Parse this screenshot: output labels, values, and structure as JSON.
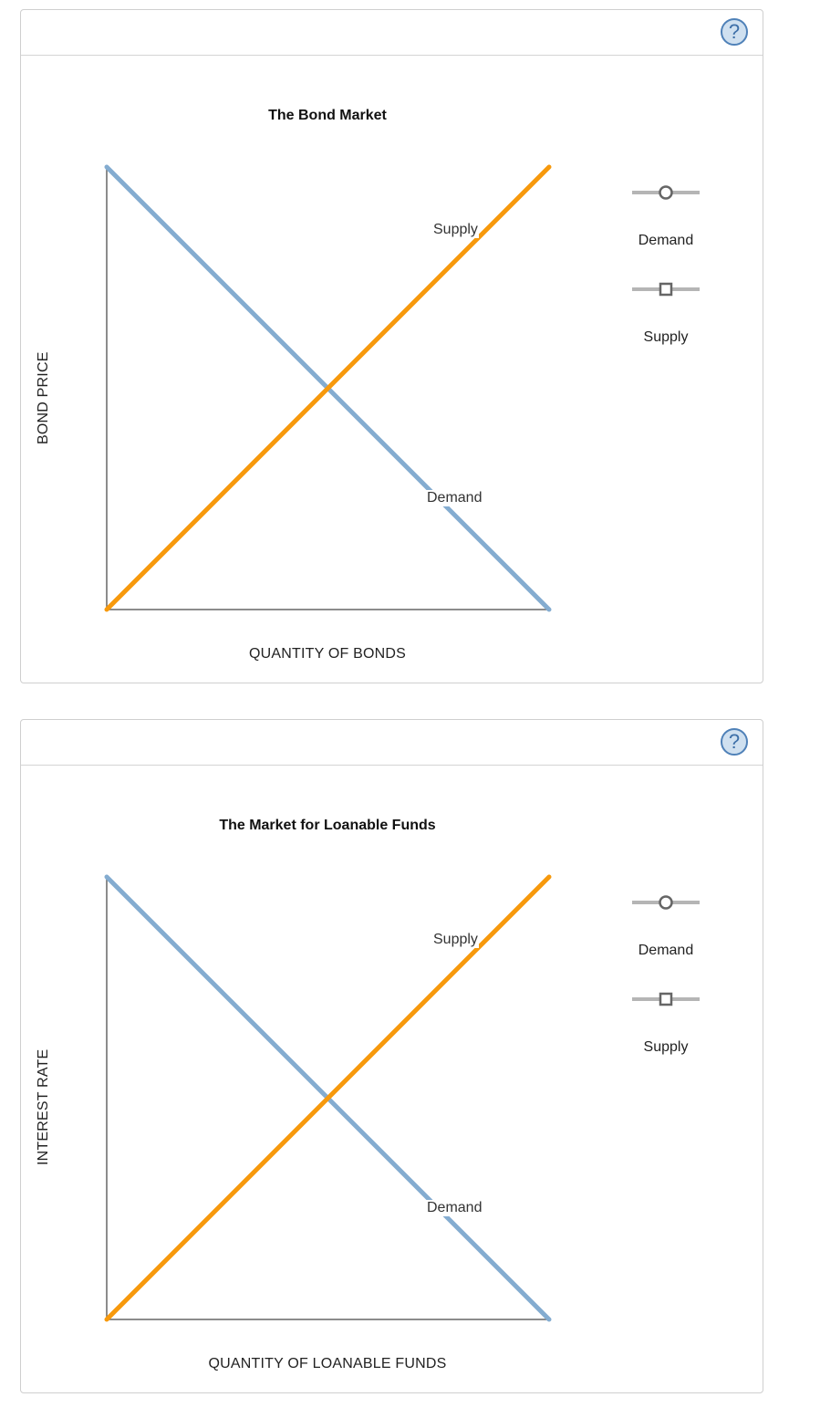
{
  "panels": [
    {
      "help_icon": "question-mark-icon",
      "help_glyph": "?",
      "title": "The Bond Market",
      "xlabel": "QUANTITY OF BONDS",
      "ylabel": "BOND PRICE",
      "legend": {
        "demand": "Demand",
        "supply": "Supply"
      },
      "curve_labels": {
        "supply": "Supply",
        "demand": "Demand"
      }
    },
    {
      "help_icon": "question-mark-icon",
      "help_glyph": "?",
      "title": "The Market for Loanable Funds",
      "xlabel": "QUANTITY OF LOANABLE FUNDS",
      "ylabel": "INTEREST RATE",
      "legend": {
        "demand": "Demand",
        "supply": "Supply"
      },
      "curve_labels": {
        "supply": "Supply",
        "demand": "Demand"
      }
    }
  ],
  "chart_data": [
    {
      "type": "line",
      "title": "The Bond Market",
      "xlabel": "QUANTITY OF BONDS",
      "ylabel": "BOND PRICE",
      "xlim": [
        0,
        100
      ],
      "ylim": [
        0,
        100
      ],
      "grid": false,
      "legend_position": "right",
      "series": [
        {
          "name": "Demand",
          "color": "#84acd0",
          "marker": "circle",
          "points": [
            [
              0,
              100
            ],
            [
              100,
              0
            ]
          ]
        },
        {
          "name": "Supply",
          "color": "#f7990c",
          "marker": "square",
          "points": [
            [
              0,
              0
            ],
            [
              100,
              100
            ]
          ]
        }
      ]
    },
    {
      "type": "line",
      "title": "The Market for Loanable Funds",
      "xlabel": "QUANTITY OF LOANABLE FUNDS",
      "ylabel": "INTEREST RATE",
      "xlim": [
        0,
        100
      ],
      "ylim": [
        0,
        100
      ],
      "grid": false,
      "legend_position": "right",
      "series": [
        {
          "name": "Demand",
          "color": "#84acd0",
          "marker": "circle",
          "points": [
            [
              0,
              100
            ],
            [
              100,
              0
            ]
          ]
        },
        {
          "name": "Supply",
          "color": "#f7990c",
          "marker": "square",
          "points": [
            [
              0,
              0
            ],
            [
              100,
              100
            ]
          ]
        }
      ]
    }
  ],
  "colors": {
    "demand": "#84acd0",
    "supply": "#f7990c",
    "axis": "#666666",
    "border": "#cfcfcf"
  }
}
